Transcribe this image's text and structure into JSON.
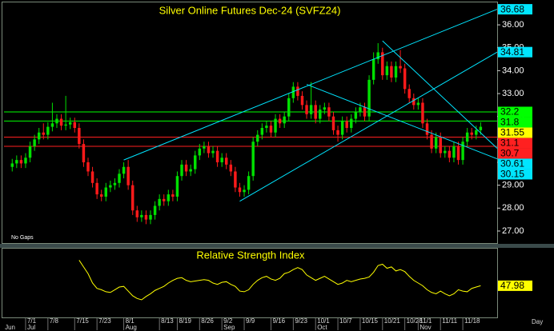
{
  "chart_data": [
    {
      "type": "candlestick",
      "title": "Silver Online Futures Dec-24 (SVFZ24)",
      "note": "No Gaps",
      "xlabel": "Day",
      "open": [
        29.8,
        29.95,
        30.1,
        29.95,
        30.2,
        30.7,
        31.0,
        31.3,
        31.2,
        31.55,
        31.7,
        31.9,
        31.6,
        31.65,
        31.75,
        31.5,
        30.8,
        30.0,
        29.6,
        29.1,
        28.6,
        28.5,
        28.9,
        29.0,
        29.1,
        29.5,
        29.8,
        29.0,
        27.9,
        27.6,
        27.7,
        27.5,
        27.7,
        28.1,
        28.4,
        28.3,
        28.6,
        28.5,
        29.4,
        29.9,
        29.6,
        29.7,
        30.3,
        30.6,
        30.7,
        30.4,
        30.5,
        30.0,
        30.2,
        29.9,
        29.6,
        28.9,
        28.7,
        28.8,
        29.4,
        30.9,
        31.2,
        31.5,
        31.6,
        31.3,
        31.9,
        31.7,
        32.0,
        32.8,
        33.3,
        32.9,
        32.5,
        32.1,
        32.5,
        31.9,
        32.3,
        32.4,
        32.0,
        31.4,
        31.2,
        31.8,
        31.5,
        31.9,
        32.2,
        32.4,
        32.0,
        33.6,
        34.5,
        34.8,
        33.8,
        34.2,
        33.7,
        34.2,
        34.1,
        33.2,
        32.8,
        32.5,
        32.6,
        31.7,
        31.2,
        30.6,
        31.1,
        30.4,
        30.5,
        30.2,
        30.7,
        30.1,
        30.9,
        31.3,
        31.2,
        31.4
      ],
      "high": [
        30.15,
        30.3,
        30.3,
        30.4,
        30.9,
        31.2,
        31.5,
        31.7,
        31.75,
        32.6,
        32.1,
        32.1,
        32.9,
        31.95,
        31.95,
        31.7,
        31.0,
        30.2,
        29.8,
        29.3,
        28.8,
        29.1,
        29.2,
        29.3,
        29.7,
        30.0,
        30.1,
        29.2,
        28.1,
        27.9,
        27.9,
        27.9,
        28.3,
        28.6,
        28.6,
        28.8,
        28.8,
        29.6,
        30.1,
        30.1,
        29.9,
        30.5,
        30.8,
        30.9,
        30.9,
        30.7,
        30.7,
        30.4,
        30.4,
        30.1,
        29.8,
        29.1,
        29.0,
        29.6,
        31.1,
        31.4,
        31.7,
        31.8,
        31.8,
        32.1,
        32.1,
        32.2,
        33.0,
        33.5,
        33.5,
        33.1,
        32.7,
        33.5,
        32.7,
        32.5,
        32.6,
        32.6,
        32.2,
        31.6,
        32.0,
        32.0,
        32.1,
        32.4,
        32.6,
        32.6,
        33.8,
        34.8,
        35.2,
        35.0,
        34.4,
        34.4,
        34.4,
        34.9,
        34.3,
        33.4,
        33.0,
        32.8,
        32.8,
        31.9,
        31.4,
        31.3,
        31.3,
        30.7,
        30.7,
        30.9,
        30.9,
        31.1,
        31.5,
        31.5,
        31.6,
        31.75
      ],
      "low": [
        29.6,
        29.75,
        29.75,
        29.75,
        30.0,
        30.5,
        30.8,
        31.0,
        31.0,
        31.35,
        31.5,
        31.4,
        31.4,
        31.45,
        31.3,
        30.6,
        29.8,
        29.4,
        28.9,
        28.4,
        28.3,
        28.3,
        28.7,
        28.8,
        28.9,
        29.3,
        28.8,
        27.7,
        27.4,
        27.4,
        27.3,
        27.3,
        27.5,
        27.9,
        28.1,
        28.1,
        28.3,
        28.3,
        29.2,
        29.4,
        29.4,
        29.5,
        30.1,
        30.4,
        30.2,
        30.2,
        29.8,
        29.8,
        29.7,
        29.4,
        28.7,
        28.5,
        28.5,
        28.6,
        29.2,
        30.7,
        31.0,
        31.3,
        31.1,
        31.1,
        31.5,
        31.5,
        31.8,
        32.6,
        32.7,
        32.3,
        31.9,
        31.9,
        31.7,
        31.7,
        32.1,
        31.8,
        31.2,
        30.9,
        31.0,
        31.3,
        31.3,
        31.7,
        32.0,
        31.8,
        31.8,
        33.4,
        34.3,
        33.6,
        33.6,
        33.5,
        33.5,
        33.9,
        33.0,
        32.6,
        32.3,
        32.3,
        31.5,
        31.0,
        30.4,
        30.4,
        30.2,
        30.2,
        30.0,
        30.0,
        29.9,
        29.9,
        30.7,
        31.0,
        31.0,
        31.2
      ],
      "close": [
        29.95,
        30.1,
        29.95,
        30.2,
        30.7,
        31.0,
        31.3,
        31.2,
        31.55,
        31.7,
        31.9,
        31.6,
        31.65,
        31.75,
        31.5,
        30.8,
        30.0,
        29.6,
        29.1,
        28.6,
        28.5,
        28.9,
        29.0,
        29.1,
        29.5,
        29.8,
        29.0,
        27.9,
        27.6,
        27.7,
        27.5,
        27.7,
        28.1,
        28.4,
        28.3,
        28.6,
        28.5,
        29.4,
        29.9,
        29.6,
        29.7,
        30.3,
        30.6,
        30.7,
        30.4,
        30.5,
        30.0,
        30.2,
        29.9,
        29.6,
        28.9,
        28.7,
        28.8,
        29.4,
        30.9,
        31.2,
        31.5,
        31.6,
        31.3,
        31.9,
        31.7,
        32.0,
        32.8,
        33.3,
        32.9,
        32.5,
        32.1,
        32.5,
        31.9,
        32.3,
        32.4,
        32.0,
        31.4,
        31.2,
        31.8,
        31.5,
        31.9,
        32.2,
        32.4,
        32.0,
        33.6,
        34.5,
        34.8,
        33.8,
        34.2,
        33.7,
        34.2,
        34.1,
        33.2,
        32.8,
        32.5,
        32.6,
        31.7,
        31.2,
        30.6,
        31.1,
        30.4,
        30.5,
        30.2,
        30.7,
        30.1,
        30.9,
        31.3,
        31.2,
        31.4,
        31.55
      ],
      "up_color": "#00e000",
      "down_color": "#ff1a1a",
      "last_color": "#ffff00",
      "xlim": [
        -2.2,
        108.7
      ],
      "ylim": [
        26.51,
        36.91
      ],
      "yticks": [
        {
          "value": 27,
          "label": "27.00"
        },
        {
          "value": 28,
          "label": "28.00"
        },
        {
          "value": 29,
          "label": "29.00"
        },
        {
          "value": 30,
          "label": "30.00"
        },
        {
          "value": 31,
          "label": "31.00"
        },
        {
          "value": 32,
          "label": "32.00"
        },
        {
          "value": 33,
          "label": "33.00"
        },
        {
          "value": 34,
          "label": "34.00"
        },
        {
          "value": 35,
          "label": "35.00"
        },
        {
          "value": 36,
          "label": "36.00"
        }
      ],
      "xticks": [
        {
          "value": 3,
          "label": "7/1"
        },
        {
          "value": 8,
          "label": "7/8"
        },
        {
          "value": 14,
          "label": "7/15"
        },
        {
          "value": 19,
          "label": "7/23"
        },
        {
          "value": 25,
          "label": "8/1"
        },
        {
          "value": 33,
          "label": "8/13"
        },
        {
          "value": 37,
          "label": "8/19"
        },
        {
          "value": 42,
          "label": "8/26"
        },
        {
          "value": 47,
          "label": "9/2"
        },
        {
          "value": 52,
          "label": "9/9"
        },
        {
          "value": 58,
          "label": "9/16"
        },
        {
          "value": 63,
          "label": "9/23"
        },
        {
          "value": 68,
          "label": "10/1"
        },
        {
          "value": 73,
          "label": "10/7"
        },
        {
          "value": 78,
          "label": "10/15"
        },
        {
          "value": 83,
          "label": "10/21"
        },
        {
          "value": 88,
          "label": "10/28"
        },
        {
          "value": 91,
          "label": "11/1"
        },
        {
          "value": 96,
          "label": "11/11"
        },
        {
          "value": 101,
          "label": "11/18"
        }
      ],
      "month_ticks": [
        {
          "value": -2,
          "label": "Jun"
        },
        {
          "value": 3,
          "label": "Jul"
        },
        {
          "value": 25,
          "label": "Aug"
        },
        {
          "value": 47,
          "label": "Sep"
        },
        {
          "value": 68,
          "label": "Oct"
        },
        {
          "value": 91,
          "label": "Nov"
        }
      ],
      "hlines": [
        {
          "value": 32.2,
          "color": "#00ff00"
        },
        {
          "value": 31.8,
          "color": "#00ff00"
        },
        {
          "value": 31.1,
          "color": "#ff2020"
        },
        {
          "value": 30.7,
          "color": "#ff2020"
        }
      ],
      "trendlines": [
        {
          "x": [
            25,
            108.7
          ],
          "y": [
            30.1,
            36.68
          ],
          "color": "#00e5ff"
        },
        {
          "x": [
            51,
            108.7
          ],
          "y": [
            28.3,
            34.81
          ],
          "color": "#00e5ff"
        },
        {
          "x": [
            66,
            108.7
          ],
          "y": [
            33.4,
            30.15
          ],
          "color": "#00e5ff"
        },
        {
          "x": [
            83,
            108.7
          ],
          "y": [
            35.3,
            30.61
          ],
          "color": "#00e5ff"
        }
      ]
    },
    {
      "type": "line",
      "title": "Relative Strength Index",
      "color": "#ffff00",
      "ylim": [
        25,
        75
      ],
      "values": [
        null,
        null,
        null,
        null,
        null,
        null,
        null,
        null,
        null,
        null,
        null,
        null,
        null,
        null,
        null,
        67,
        62,
        57,
        50,
        46,
        45,
        43.5,
        43,
        45,
        47,
        47.5,
        44,
        40.5,
        38.5,
        37.5,
        40,
        42,
        44.5,
        46,
        47.5,
        50,
        52,
        53.5,
        54,
        52,
        51,
        51.5,
        52,
        52.5,
        52,
        50,
        49,
        50.5,
        51,
        49,
        47.5,
        44,
        43.5,
        45,
        49,
        52,
        54,
        55,
        53,
        52,
        53.5,
        57,
        58,
        60,
        61.5,
        60,
        56,
        54,
        52,
        53.5,
        55,
        53,
        51,
        49,
        50,
        52,
        51,
        52,
        53,
        53.5,
        54.5,
        58,
        63,
        64,
        61,
        62,
        59,
        60,
        58.5,
        55,
        52,
        50,
        48,
        45,
        43,
        42,
        44,
        42,
        40.5,
        42,
        45,
        44,
        43.5,
        46,
        47,
        47.98
      ]
    }
  ]
}
